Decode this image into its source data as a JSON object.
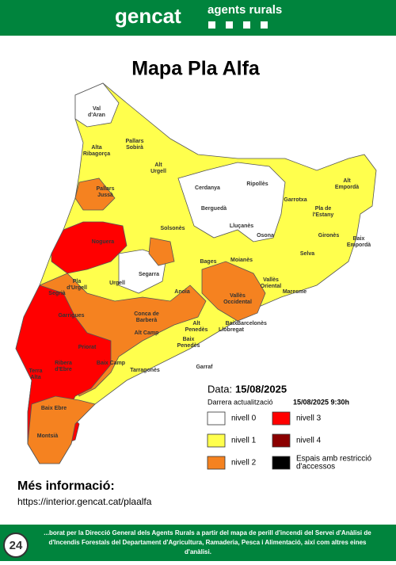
{
  "header": {
    "logo": "gencat",
    "unit": "agents rurals"
  },
  "title": "Mapa Pla Alfa",
  "regions": [
    {
      "lines": [
        "Val",
        "d'Aran"
      ]
    },
    {
      "lines": [
        "Alta",
        "Ribagorça"
      ]
    },
    {
      "lines": [
        "Pallars",
        "Sobirà"
      ]
    },
    {
      "lines": [
        "Pallars",
        "Jussà"
      ]
    },
    {
      "lines": [
        "Alt",
        "Urgell"
      ]
    },
    {
      "lines": [
        "Cerdanya"
      ]
    },
    {
      "lines": [
        "Ripollès"
      ]
    },
    {
      "lines": [
        "Alt",
        "Empordà"
      ]
    },
    {
      "lines": [
        "Garrotxa"
      ]
    },
    {
      "lines": [
        "Pla de",
        "l'Estany"
      ]
    },
    {
      "lines": [
        "Berguedà"
      ]
    },
    {
      "lines": [
        "Noguera"
      ]
    },
    {
      "lines": [
        "Solsonès"
      ]
    },
    {
      "lines": [
        "Lluçanès"
      ]
    },
    {
      "lines": [
        "Osona"
      ]
    },
    {
      "lines": [
        "Gironès"
      ]
    },
    {
      "lines": [
        "Baix",
        "Empordà"
      ]
    },
    {
      "lines": [
        "Selva"
      ]
    },
    {
      "lines": [
        "Bages"
      ]
    },
    {
      "lines": [
        "Moianès"
      ]
    },
    {
      "lines": [
        "Segarra"
      ]
    },
    {
      "lines": [
        "Pla",
        "d'Urgell"
      ]
    },
    {
      "lines": [
        "Urgell"
      ]
    },
    {
      "lines": [
        "Segrià"
      ]
    },
    {
      "lines": [
        "Anoia"
      ]
    },
    {
      "lines": [
        "Vallès",
        "Oriental"
      ]
    },
    {
      "lines": [
        "Maresme"
      ]
    },
    {
      "lines": [
        "Vallès",
        "Occidental"
      ]
    },
    {
      "lines": [
        "Garrigues"
      ]
    },
    {
      "lines": [
        "Conca de",
        "Barberà"
      ]
    },
    {
      "lines": [
        "Alt Camp"
      ]
    },
    {
      "lines": [
        "Alt",
        "Penedès"
      ]
    },
    {
      "lines": [
        "Baix",
        "Llobregat"
      ]
    },
    {
      "lines": [
        "Barcelonès"
      ]
    },
    {
      "lines": [
        "Priorat"
      ]
    },
    {
      "lines": [
        "Baix",
        "Penedès"
      ]
    },
    {
      "lines": [
        "Garraf"
      ]
    },
    {
      "lines": [
        "Ribera",
        "d'Ebre"
      ]
    },
    {
      "lines": [
        "Baix Camp"
      ]
    },
    {
      "lines": [
        "Tarragonès"
      ]
    },
    {
      "lines": [
        "Terra",
        "Alta"
      ]
    },
    {
      "lines": [
        "Baix Ebre"
      ]
    },
    {
      "lines": [
        "Montsià"
      ]
    }
  ],
  "date": {
    "label": "Data:",
    "value": "15/08/2025",
    "update_label": "Darrera actualització",
    "update_value": "15/08/2025 9:30h"
  },
  "legend": [
    {
      "label": [
        "nivell 0"
      ],
      "color": "#ffffff"
    },
    {
      "label": [
        "nivell 3"
      ],
      "color": "#ff0000"
    },
    {
      "label": [
        "nivell 1"
      ],
      "color": "#ffff4d"
    },
    {
      "label": [
        "nivell 4"
      ],
      "color": "#8b0000"
    },
    {
      "label": [
        "nivell 2"
      ],
      "color": "#f58220"
    },
    {
      "label": [
        "Espais amb restricció",
        "d'accessos"
      ],
      "color": "#000000"
    }
  ],
  "more_info": {
    "heading": "Més informació:",
    "url": "https://interior.gencat.cat/plaalfa"
  },
  "footer": {
    "badge": "24",
    "lines": [
      "...borat per la Direcció General dels Agents Rurals a partir del mapa de perill d'incendi del Servei d'Anàlisi de",
      "d'Incendis Forestals del Departament d'Agricultura, Ramaderia, Pesca i Alimentació, així com altres eines",
      "d'anàlisi."
    ]
  }
}
